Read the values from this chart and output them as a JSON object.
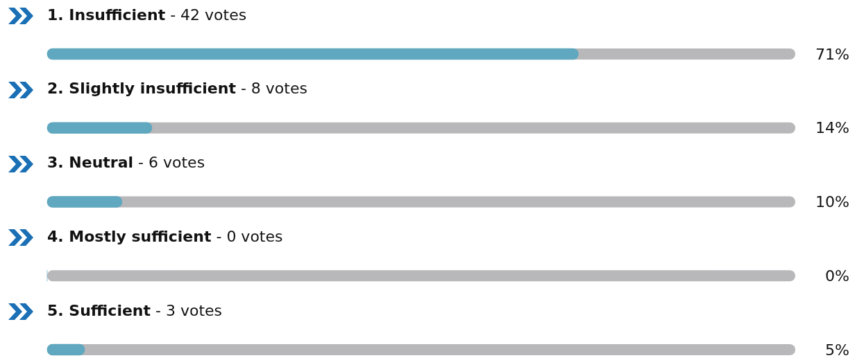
{
  "chart_data": {
    "type": "bar",
    "orientation": "horizontal",
    "categories": [
      "1. Insufficient - 42 votes",
      "2. Slightly insufficient - 8 votes",
      "3. Neutral - 6 votes",
      "4. Mostly sufficient - 0 votes",
      "5. Sufficient - 3 votes"
    ],
    "values": [
      71,
      14,
      10,
      0,
      5
    ],
    "value_labels": [
      "71%",
      "14%",
      "10%",
      "0%",
      "5%"
    ],
    "color": "#5fa8bf",
    "xlim": [
      0,
      100
    ],
    "tick_labels": false,
    "legend": false
  }
}
